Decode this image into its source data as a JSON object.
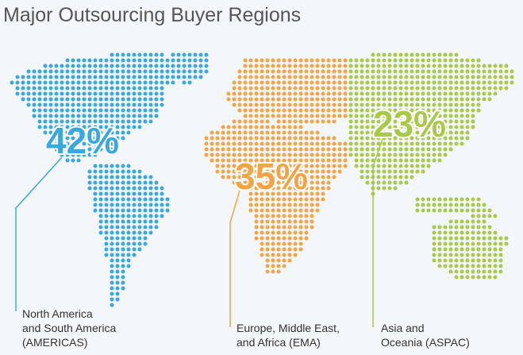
{
  "title": "Major Outsourcing Buyer Regions",
  "regions": [
    {
      "share": "42%",
      "label": [
        "North America",
        "and South America",
        "(AMERICAS)"
      ]
    },
    {
      "share": "35%",
      "label": [
        "Europe, Middle East,",
        "and Africa (EMA)"
      ]
    },
    {
      "share": "23%",
      "label": [
        "Asia and",
        "Oceania (ASPAC)"
      ]
    }
  ]
}
